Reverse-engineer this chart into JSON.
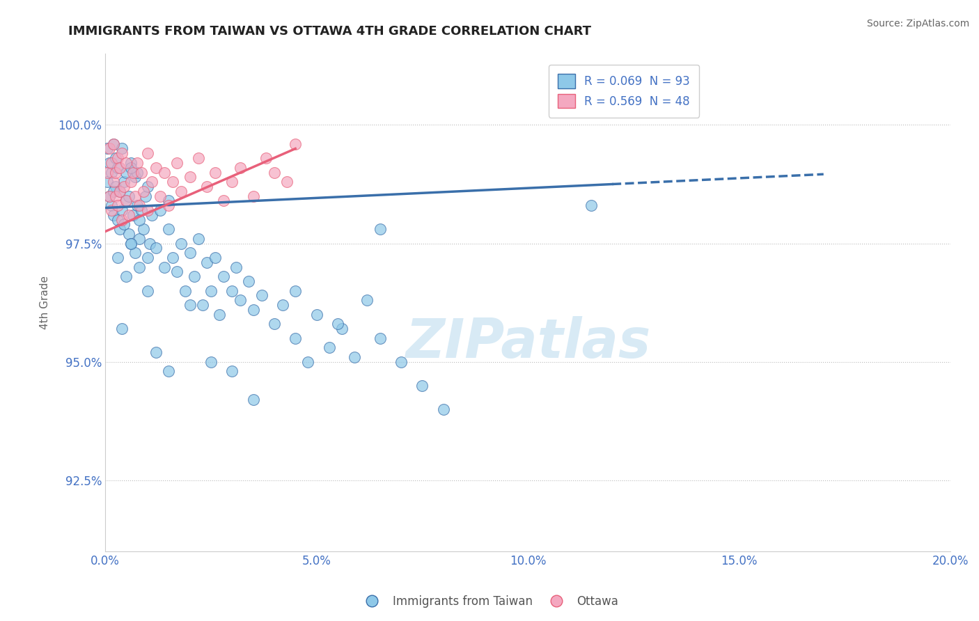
{
  "title": "IMMIGRANTS FROM TAIWAN VS OTTAWA 4TH GRADE CORRELATION CHART",
  "source": "Source: ZipAtlas.com",
  "ylabel": "4th Grade",
  "legend_label_blue": "Immigrants from Taiwan",
  "legend_label_pink": "Ottawa",
  "R_blue": 0.069,
  "N_blue": 93,
  "R_pink": 0.569,
  "N_pink": 48,
  "xlim": [
    0.0,
    20.0
  ],
  "ylim": [
    91.0,
    101.5
  ],
  "yticks": [
    92.5,
    95.0,
    97.5,
    100.0
  ],
  "xticks": [
    0.0,
    5.0,
    10.0,
    15.0,
    20.0
  ],
  "xtick_labels": [
    "0.0%",
    "5.0%",
    "10.0%",
    "15.0%",
    "20.0%"
  ],
  "ytick_labels": [
    "92.5%",
    "95.0%",
    "97.5%",
    "100.0%"
  ],
  "color_blue": "#8EC8E8",
  "color_pink": "#F4A8C0",
  "color_blue_line": "#3A6FAA",
  "color_pink_line": "#E8607A",
  "color_axis_labels": "#4472C4",
  "watermark_color": "#D8EAF5",
  "blue_line_x0": 0.0,
  "blue_line_y0": 98.25,
  "blue_line_x1": 12.0,
  "blue_line_y1": 98.75,
  "blue_dash_x0": 12.0,
  "blue_dash_y0": 98.75,
  "blue_dash_x1": 17.0,
  "blue_dash_y1": 98.96,
  "pink_line_x0": 0.0,
  "pink_line_y0": 97.75,
  "pink_line_x1": 4.5,
  "pink_line_y1": 99.5,
  "blue_dots_x": [
    0.05,
    0.05,
    0.1,
    0.1,
    0.15,
    0.15,
    0.2,
    0.2,
    0.25,
    0.25,
    0.3,
    0.3,
    0.35,
    0.35,
    0.4,
    0.4,
    0.45,
    0.45,
    0.5,
    0.5,
    0.55,
    0.55,
    0.6,
    0.6,
    0.65,
    0.7,
    0.7,
    0.75,
    0.75,
    0.8,
    0.85,
    0.9,
    0.95,
    1.0,
    1.0,
    1.05,
    1.1,
    1.2,
    1.3,
    1.4,
    1.5,
    1.5,
    1.6,
    1.7,
    1.8,
    1.9,
    2.0,
    2.1,
    2.2,
    2.3,
    2.4,
    2.5,
    2.6,
    2.7,
    2.8,
    3.0,
    3.1,
    3.2,
    3.4,
    3.5,
    3.7,
    4.0,
    4.2,
    4.5,
    4.8,
    5.0,
    5.3,
    5.6,
    5.9,
    6.2,
    6.5,
    7.0,
    7.5,
    8.0,
    0.3,
    0.4,
    0.5,
    0.6,
    0.8,
    1.0,
    1.2,
    1.5,
    2.0,
    2.5,
    3.0,
    3.5,
    4.5,
    5.5,
    6.5,
    11.5,
    0.2,
    0.6,
    0.8
  ],
  "blue_dots_y": [
    98.8,
    99.5,
    98.5,
    99.2,
    98.3,
    99.0,
    99.6,
    98.1,
    98.7,
    99.3,
    98.0,
    99.1,
    97.8,
    98.6,
    99.5,
    98.2,
    97.9,
    98.8,
    98.4,
    99.0,
    97.7,
    98.5,
    99.2,
    97.5,
    98.1,
    98.9,
    97.3,
    98.3,
    99.0,
    97.6,
    98.2,
    97.8,
    98.5,
    97.2,
    98.7,
    97.5,
    98.1,
    97.4,
    98.2,
    97.0,
    97.8,
    98.4,
    97.2,
    96.9,
    97.5,
    96.5,
    97.3,
    96.8,
    97.6,
    96.2,
    97.1,
    96.5,
    97.2,
    96.0,
    96.8,
    96.5,
    97.0,
    96.3,
    96.7,
    96.1,
    96.4,
    95.8,
    96.2,
    95.5,
    95.0,
    96.0,
    95.3,
    95.7,
    95.1,
    96.3,
    95.5,
    95.0,
    94.5,
    94.0,
    97.2,
    95.7,
    96.8,
    97.5,
    97.0,
    96.5,
    95.2,
    94.8,
    96.2,
    95.0,
    94.8,
    94.2,
    96.5,
    95.8,
    97.8,
    98.3,
    98.6,
    99.1,
    98.0
  ],
  "pink_dots_x": [
    0.05,
    0.1,
    0.1,
    0.15,
    0.15,
    0.2,
    0.2,
    0.25,
    0.25,
    0.3,
    0.3,
    0.35,
    0.35,
    0.4,
    0.4,
    0.45,
    0.5,
    0.5,
    0.55,
    0.6,
    0.65,
    0.7,
    0.75,
    0.8,
    0.85,
    0.9,
    1.0,
    1.0,
    1.1,
    1.2,
    1.3,
    1.4,
    1.5,
    1.6,
    1.7,
    1.8,
    2.0,
    2.2,
    2.4,
    2.6,
    2.8,
    3.0,
    3.2,
    3.5,
    3.8,
    4.0,
    4.3,
    4.5
  ],
  "pink_dots_y": [
    99.0,
    98.5,
    99.5,
    98.2,
    99.2,
    98.8,
    99.6,
    98.5,
    99.0,
    98.3,
    99.3,
    98.6,
    99.1,
    98.0,
    99.4,
    98.7,
    98.4,
    99.2,
    98.1,
    98.8,
    99.0,
    98.5,
    99.2,
    98.3,
    99.0,
    98.6,
    98.2,
    99.4,
    98.8,
    99.1,
    98.5,
    99.0,
    98.3,
    98.8,
    99.2,
    98.6,
    98.9,
    99.3,
    98.7,
    99.0,
    98.4,
    98.8,
    99.1,
    98.5,
    99.3,
    99.0,
    98.8,
    99.6
  ]
}
